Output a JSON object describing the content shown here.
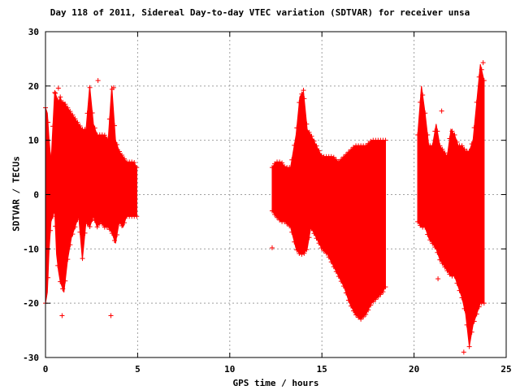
{
  "chart_data": {
    "type": "scatter",
    "title": "Day 118 of 2011, Sidereal Day-to-day VTEC variation (SDTVAR) for receiver unsa",
    "xlabel": "GPS time / hours",
    "ylabel": "SDTVAR / TECUs",
    "xlim": [
      0,
      25
    ],
    "ylim": [
      -30,
      30
    ],
    "xticks": [
      0,
      5,
      10,
      15,
      20,
      25
    ],
    "yticks": [
      -30,
      -20,
      -10,
      0,
      10,
      20,
      30
    ],
    "grid": true,
    "marker": "+",
    "color": "#ff0000",
    "series": [
      {
        "x": [
          0.0,
          0.1,
          0.2,
          0.3,
          0.5,
          0.6,
          0.7,
          0.8,
          0.9,
          1.0,
          1.2,
          1.4,
          1.6,
          1.8,
          2.0,
          2.2,
          2.4,
          2.6,
          2.8,
          3.0,
          3.2,
          3.4,
          3.6,
          3.8,
          4.0,
          4.2,
          4.4,
          4.6,
          4.8,
          4.95
        ],
        "y_min": [
          -20,
          -18,
          -10,
          -5,
          -3,
          -11,
          -14,
          -16,
          -17,
          -18,
          -12,
          -8,
          -6,
          -4,
          -12,
          -5,
          -6,
          -4,
          -6,
          -5,
          -6,
          -6,
          -7,
          -9,
          -5,
          -6,
          -4,
          -4,
          -4,
          -4
        ],
        "y_max": [
          16,
          15,
          10,
          6,
          19,
          18,
          17,
          18,
          17,
          17,
          16,
          15,
          14,
          13,
          12,
          12,
          20,
          13,
          11,
          11,
          11,
          10,
          20,
          10,
          8,
          7,
          6,
          6,
          6,
          5
        ]
      },
      {
        "x": [
          12.3,
          12.5,
          12.8,
          13.0,
          13.3,
          13.6,
          13.8,
          14.0,
          14.2,
          14.4,
          14.7,
          15.0,
          15.3,
          15.6,
          15.9,
          16.2,
          16.5,
          16.8,
          17.1,
          17.4,
          17.7,
          18.0,
          18.3,
          18.45
        ],
        "y_min": [
          -3,
          -4,
          -5,
          -5,
          -6,
          -10,
          -11,
          -11,
          -10,
          -6,
          -8,
          -10,
          -11,
          -13,
          -15,
          -17,
          -20,
          -22,
          -23,
          -22,
          -20,
          -19,
          -18,
          -17
        ],
        "y_max": [
          5,
          6,
          6,
          5,
          5,
          11,
          18,
          19,
          12,
          11,
          9,
          7,
          7,
          7,
          6,
          7,
          8,
          9,
          9,
          9,
          10,
          10,
          10,
          10
        ]
      },
      {
        "x": [
          20.2,
          20.4,
          20.6,
          20.8,
          21.0,
          21.2,
          21.4,
          21.6,
          21.8,
          22.0,
          22.2,
          22.4,
          22.6,
          22.8,
          23.0,
          23.2,
          23.4,
          23.6,
          23.8
        ],
        "y_min": [
          -5,
          -6,
          -6,
          -8,
          -9,
          -10,
          -12,
          -13,
          -14,
          -15,
          -15,
          -17,
          -19,
          -22,
          -28,
          -24,
          -22,
          -20,
          -20
        ],
        "y_max": [
          11,
          20,
          15,
          9,
          9,
          13,
          9,
          8,
          7,
          12,
          11,
          9,
          9,
          8,
          8,
          10,
          17,
          24,
          21
        ]
      }
    ],
    "outliers": [
      [
        0.9,
        -22.3
      ],
      [
        3.55,
        -22.3
      ],
      [
        2.85,
        21.0
      ],
      [
        3.7,
        19.7
      ],
      [
        12.3,
        -9.8
      ],
      [
        14.0,
        19.2
      ],
      [
        16.3,
        -16.0
      ],
      [
        23.75,
        24.3
      ],
      [
        21.3,
        -15.5
      ],
      [
        21.5,
        15.4
      ],
      [
        22.7,
        -29.0
      ],
      [
        0.5,
        18.8
      ],
      [
        0.7,
        19.6
      ]
    ]
  }
}
